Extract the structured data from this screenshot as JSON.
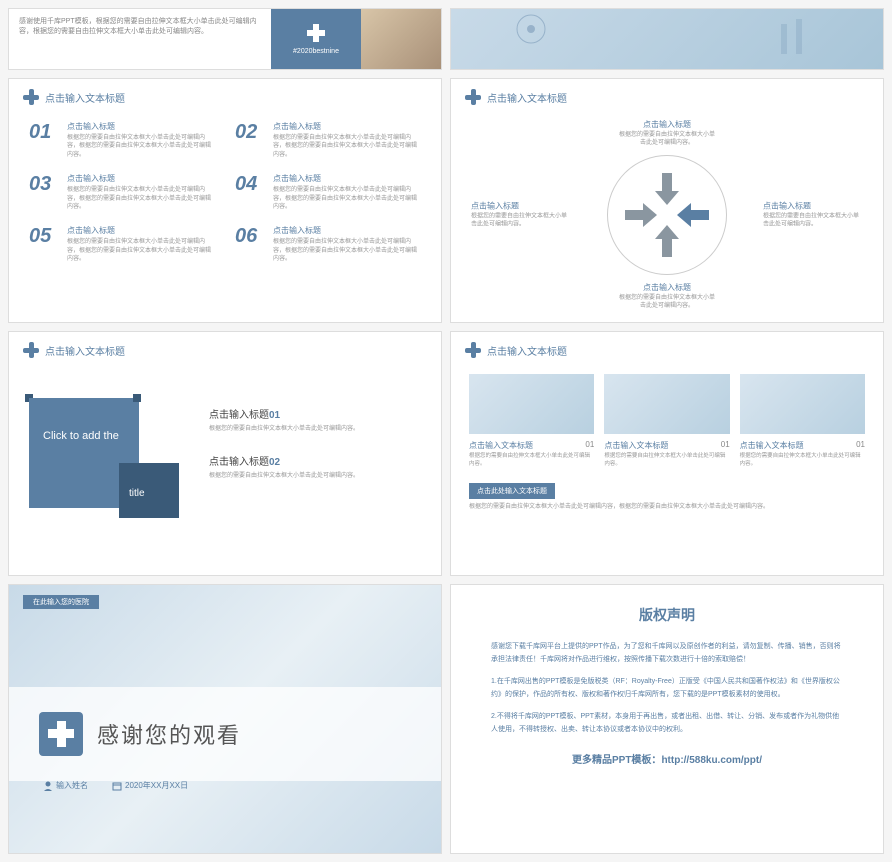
{
  "colors": {
    "primary": "#5a7fa3",
    "dark": "#3a5a78",
    "text": "#888",
    "muted": "#999"
  },
  "top": {
    "left_text": "感谢使用千库PPT模板，根据您的需要自由拉伸文本框大小单击此处可编辑内容，根据您的需要自由拉伸文本框大小单击此处可编辑内容。",
    "hashtag": "#2020bestnine"
  },
  "header": "点击输入文本标题",
  "s1": {
    "items": [
      {
        "n": "01",
        "t": "点击输入标题",
        "d": "根据您的需要自由拉伸文本框大小单击此处可编辑内容，根据您的需要自由拉伸文本框大小单击此处可编辑内容。"
      },
      {
        "n": "02",
        "t": "点击输入标题",
        "d": "根据您的需要自由拉伸文本框大小单击此处可编辑内容，根据您的需要自由拉伸文本框大小单击此处可编辑内容。"
      },
      {
        "n": "03",
        "t": "点击输入标题",
        "d": "根据您的需要自由拉伸文本框大小单击此处可编辑内容，根据您的需要自由拉伸文本框大小单击此处可编辑内容。"
      },
      {
        "n": "04",
        "t": "点击输入标题",
        "d": "根据您的需要自由拉伸文本框大小单击此处可编辑内容，根据您的需要自由拉伸文本框大小单击此处可编辑内容。"
      },
      {
        "n": "05",
        "t": "点击输入标题",
        "d": "根据您的需要自由拉伸文本框大小单击此处可编辑内容，根据您的需要自由拉伸文本框大小单击此处可编辑内容。"
      },
      {
        "n": "06",
        "t": "点击输入标题",
        "d": "根据您的需要自由拉伸文本框大小单击此处可编辑内容，根据您的需要自由拉伸文本框大小单击此处可编辑内容。"
      }
    ]
  },
  "s2": {
    "arrow_colors": {
      "top": "#8a96a0",
      "bottom": "#8a96a0",
      "left": "#8a96a0",
      "right": "#5a7fa3"
    },
    "labels": {
      "top": {
        "t": "点击输入标题",
        "d": "根据您的需要自由拉伸文本框大小单击此处可编辑内容。"
      },
      "bottom": {
        "t": "点击输入标题",
        "d": "根据您的需要自由拉伸文本框大小单击此处可编辑内容。"
      },
      "left": {
        "t": "点击输入标题",
        "d": "根据您的需要自由拉伸文本框大小单击此处可编辑内容。"
      },
      "right": {
        "t": "点击输入标题",
        "d": "根据您的需要自由拉伸文本框大小单击此处可编辑内容。"
      }
    }
  },
  "s3": {
    "click1": "Click to add the",
    "click2": "title",
    "items": [
      {
        "t": "点击输入标题",
        "n": "01",
        "d": "根据您的需要自由拉伸文本框大小单击此处可编辑内容。"
      },
      {
        "t": "点击输入标题",
        "n": "02",
        "d": "根据您的需要自由拉伸文本框大小单击此处可编辑内容。"
      }
    ]
  },
  "s4": {
    "cards": [
      {
        "t": "点击输入文本标题",
        "n": "01",
        "d": "根据您的需要自由拉伸文本框大小单击此处可编辑内容。"
      },
      {
        "t": "点击输入文本标题",
        "n": "01",
        "d": "根据您的需要自由拉伸文本框大小单击此处可编辑内容。"
      },
      {
        "t": "点击输入文本标题",
        "n": "01",
        "d": "根据您的需要自由拉伸文本框大小单击此处可编辑内容。"
      }
    ],
    "bar": "点击此处输入文本标题",
    "bar_desc": "根据您的需要自由拉伸文本框大小单击此处可编辑内容，根据您的需要自由拉伸文本框大小单击此处可编辑内容。"
  },
  "s5": {
    "tag": "在此输入您的医院",
    "thank": "感谢您的观看",
    "author_label": "输入姓名",
    "date": "2020年XX月XX日"
  },
  "s6": {
    "title": "版权声明",
    "p1": "感谢您下载千库网平台上提供的PPT作品，为了您和千库网以及原创作者的利益，请勿复制、传播、销售，否则将承担法律责任！千库网将对作品进行维权，按照传播下载次数进行十倍的索取赔偿！",
    "p2": "1.在千库网出售的PPT模板是免版税类（RF：Royalty-Free）正版受《中国人民共和国著作权法》和《世界版权公约》的保护，作品的所有权、版权和著作权归千库网所有，您下载的是PPT模板素材的使用权。",
    "p3": "2.不得将千库网的PPT模板、PPT素材，本身用于再出售，或者出租、出借、转让、分销、发布或者作为礼物供他人使用，不得转授权、出卖、转让本协议或者本协议中的权利。",
    "more": "更多精品PPT模板：",
    "url": "http://588ku.com/ppt/"
  }
}
